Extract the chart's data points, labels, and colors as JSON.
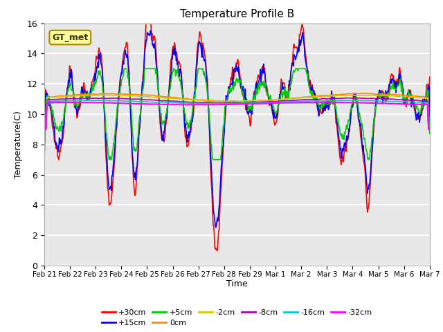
{
  "title": "Temperature Profile B",
  "xlabel": "Time",
  "ylabel": "Temperature(C)",
  "ylim": [
    0,
    16
  ],
  "yticks": [
    0,
    2,
    4,
    6,
    8,
    10,
    12,
    14,
    16
  ],
  "xtick_labels": [
    "Feb 21",
    "Feb 22",
    "Feb 23",
    "Feb 24",
    "Feb 25",
    "Feb 26",
    "Feb 27",
    "Feb 28",
    "Feb 29",
    "Mar 1",
    "Mar 2",
    "Mar 3",
    "Mar 4",
    "Mar 5",
    "Mar 6",
    "Mar 7"
  ],
  "annotation_text": "GT_met",
  "annotation_box_color": "#ffff99",
  "annotation_box_edge": "#aa8800",
  "background_color": "#e8e8e8",
  "series_order": [
    "+30cm",
    "+15cm",
    "+5cm",
    "0cm",
    "-2cm",
    "-8cm",
    "-16cm",
    "-32cm"
  ],
  "legend_row1": [
    "+30cm",
    "+15cm",
    "+5cm",
    "0cm",
    "-2cm",
    "-8cm"
  ],
  "legend_row2": [
    "-16cm",
    "-32cm"
  ],
  "colors": {
    "+30cm": "#ff0000",
    "+15cm": "#0000ff",
    "+5cm": "#00cc00",
    "0cm": "#ff8800",
    "-2cm": "#cccc00",
    "-8cm": "#aa00aa",
    "-16cm": "#00cccc",
    "-32cm": "#ff00ff"
  },
  "lw": {
    "+30cm": 1.2,
    "+15cm": 1.2,
    "+5cm": 1.2,
    "0cm": 1.2,
    "-2cm": 1.2,
    "-8cm": 1.2,
    "-16cm": 1.2,
    "-32cm": 1.5
  }
}
